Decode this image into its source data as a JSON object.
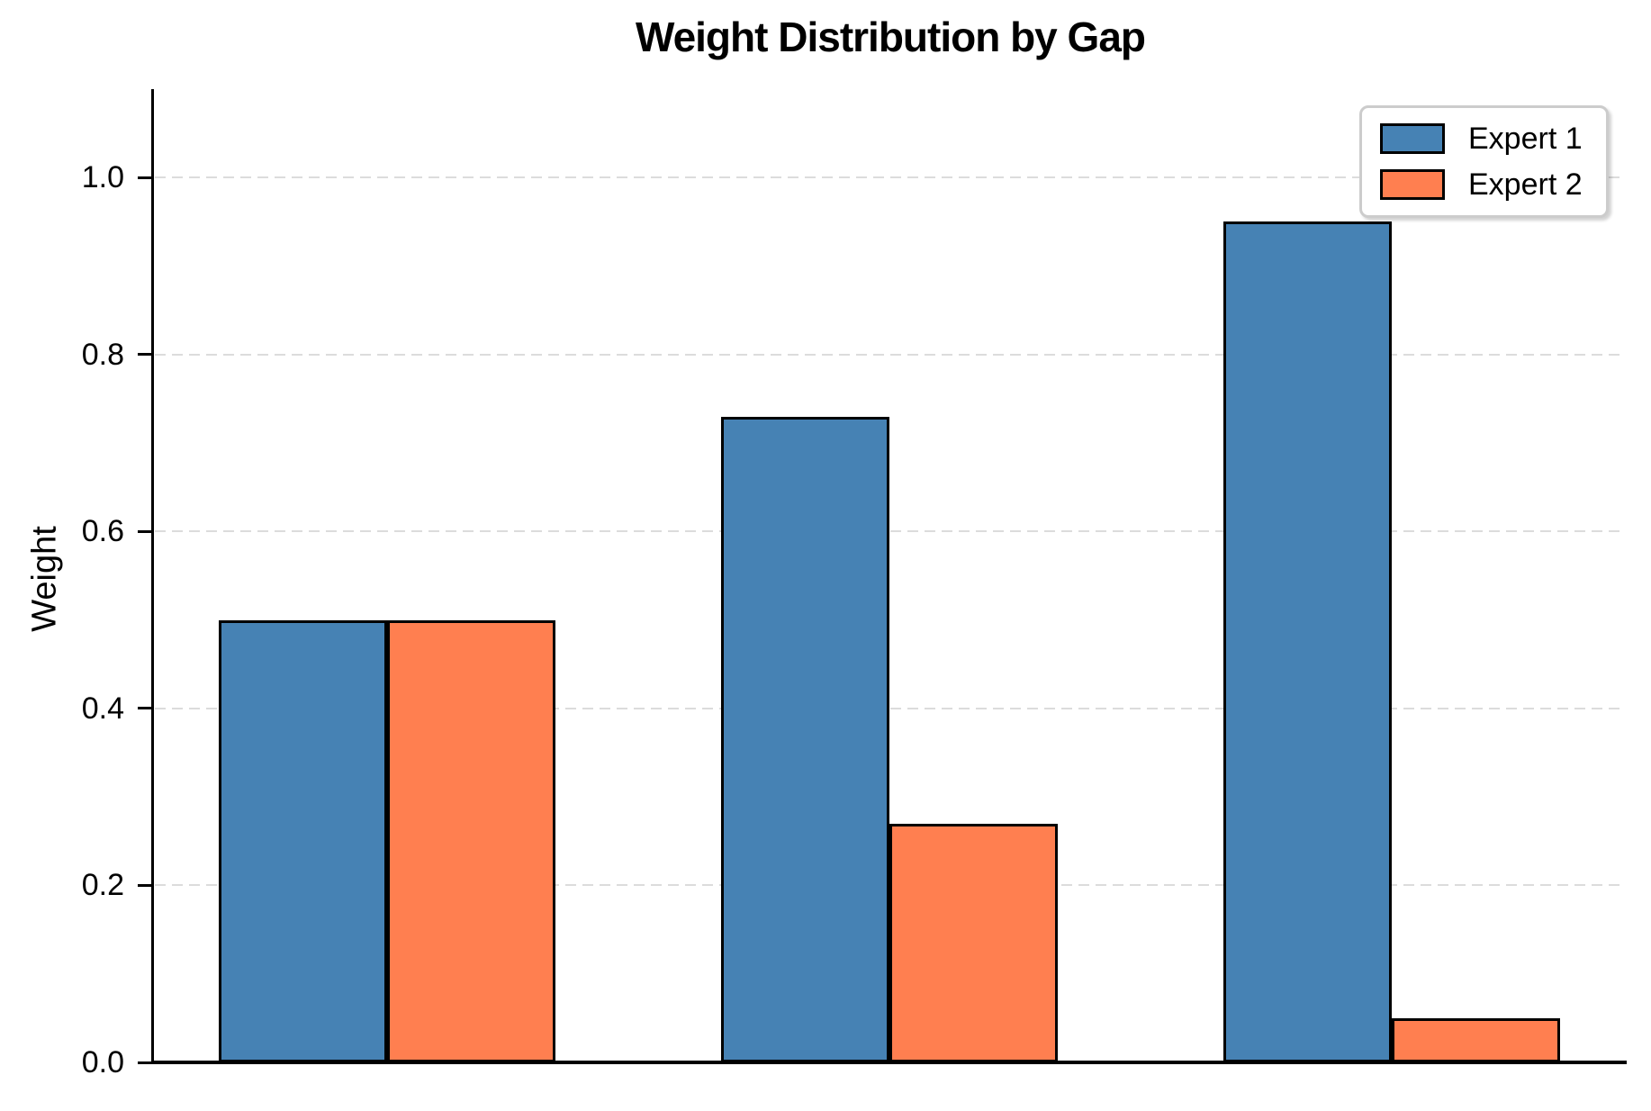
{
  "chart_data": {
    "type": "bar",
    "title": "Weight Distribution by Gap",
    "ylabel": "Weight",
    "xlabel": "",
    "categories": [
      "",
      "",
      ""
    ],
    "series": [
      {
        "name": "Expert 1",
        "color": "#4682B4",
        "values": [
          0.5,
          0.73,
          0.95
        ]
      },
      {
        "name": "Expert 2",
        "color": "#FF7F50",
        "values": [
          0.5,
          0.27,
          0.05
        ]
      }
    ],
    "ylim": [
      0,
      1.1
    ],
    "yticks": [
      {
        "value": 0.0,
        "label": "0.0"
      },
      {
        "value": 0.2,
        "label": "0.2"
      },
      {
        "value": 0.4,
        "label": "0.4"
      },
      {
        "value": 0.6,
        "label": "0.6"
      },
      {
        "value": 0.8,
        "label": "0.8"
      },
      {
        "value": 1.0,
        "label": "1.0"
      }
    ],
    "grid": {
      "axis": "y",
      "style": "dashed",
      "color": "#DCDCDC"
    },
    "legend": {
      "position": "upper-right",
      "entries": [
        "Expert 1",
        "Expert 2"
      ]
    },
    "colors": {
      "bar_edge": "#000000",
      "axis": "#000000",
      "background": "#FFFFFF",
      "legend_border": "#CCCCCC",
      "text": "#000000"
    },
    "x_tick_labels_visible": false
  }
}
